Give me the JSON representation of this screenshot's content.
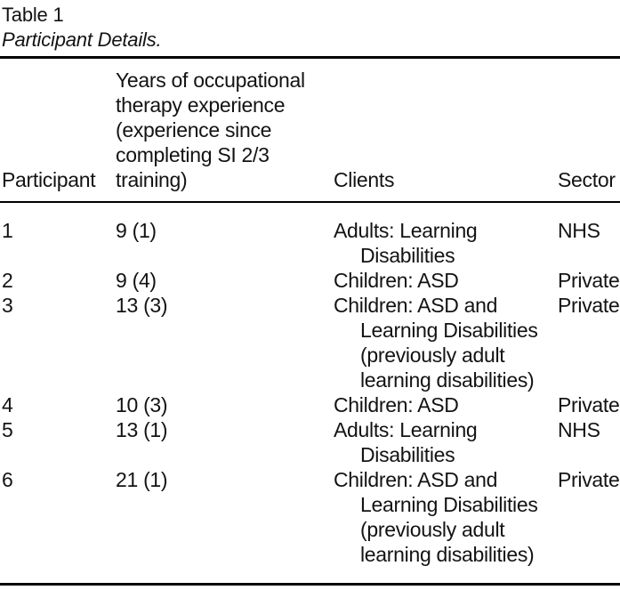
{
  "table": {
    "number": "Table 1",
    "caption": "Participant Details.",
    "columns": {
      "participant": "Participant",
      "experience": "Years of occupational\ntherapy experience\n(experience since\ncompleting SI 2/3\ntraining)",
      "clients": "Clients",
      "sector": "Sector"
    },
    "rows": [
      {
        "participant": "1",
        "experience": "9 (1)",
        "clients": "Adults: Learning\nDisabilities",
        "sector": "NHS"
      },
      {
        "participant": "2",
        "experience": "9 (4)",
        "clients": "Children: ASD",
        "sector": "Private"
      },
      {
        "participant": "3",
        "experience": "13 (3)",
        "clients": "Children: ASD and\nLearning Disabilities\n(previously adult\nlearning disabilities)",
        "sector": "Private"
      },
      {
        "participant": "4",
        "experience": "10 (3)",
        "clients": "Children: ASD",
        "sector": "Private"
      },
      {
        "participant": "5",
        "experience": "13 (1)",
        "clients": "Adults: Learning\nDisabilities",
        "sector": "NHS"
      },
      {
        "participant": "6",
        "experience": "21 (1)",
        "clients": "Children: ASD and\nLearning Disabilities\n(previously adult\nlearning disabilities)",
        "sector": "Private"
      }
    ]
  },
  "colors": {
    "text": "#131313",
    "background": "#ffffff",
    "rule": "#000000"
  }
}
